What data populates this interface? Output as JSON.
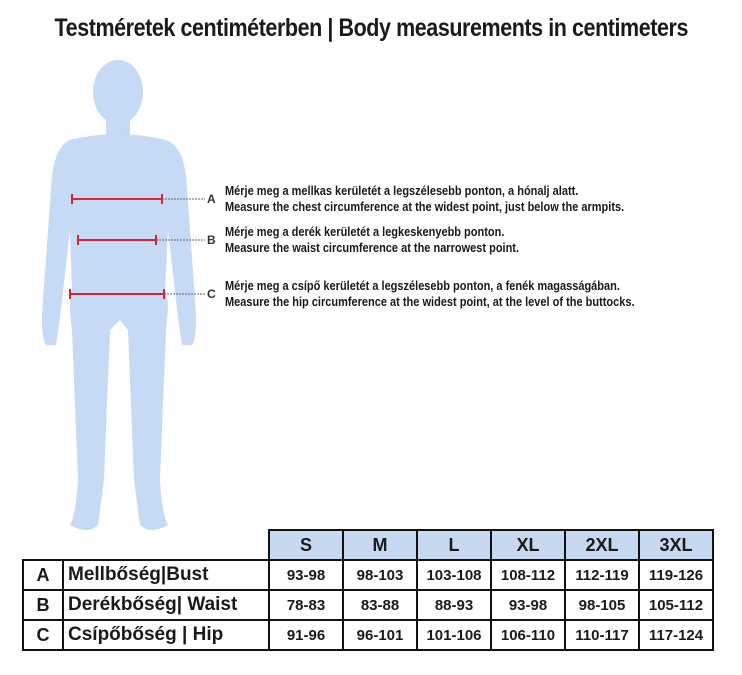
{
  "title": "Testméretek centiméterben | Body measurements in centimeters",
  "figure_color": "#c6d9f5",
  "marker_color": "#d9232e",
  "instructions": [
    {
      "letter": "A",
      "hu": "Mérje meg a mellkas kerületét a legszélesebb ponton, a hónalj alatt.",
      "en": "Measure the chest circumference at the widest point, just below the armpits."
    },
    {
      "letter": "B",
      "hu": "Mérje meg a derék kerületét a legkeskenyebb ponton.",
      "en": "Measure the waist circumference at the narrowest point."
    },
    {
      "letter": "C",
      "hu": "Mérje meg a csípő kerületét a legszélesebb ponton, a fenék magasságában.",
      "en": "Measure the hip circumference at the widest point, at the level of the buttocks."
    }
  ],
  "table": {
    "header_color": "#c6d9f1",
    "sizes": [
      "S",
      "M",
      "L",
      "XL",
      "2XL",
      "3XL"
    ],
    "rows": [
      {
        "letter": "A",
        "label": "Mellbőség|Bust",
        "values": [
          "93-98",
          "98-103",
          "103-108",
          "108-112",
          "112-119",
          "119-126"
        ]
      },
      {
        "letter": "B",
        "label": "Derékbőség| Waist",
        "values": [
          "78-83",
          "83-88",
          "88-93",
          "93-98",
          "98-105",
          "105-112"
        ]
      },
      {
        "letter": "C",
        "label": "Csípőbőség | Hip",
        "values": [
          "91-96",
          "96-101",
          "101-106",
          "106-110",
          "110-117",
          "117-124"
        ]
      }
    ]
  }
}
